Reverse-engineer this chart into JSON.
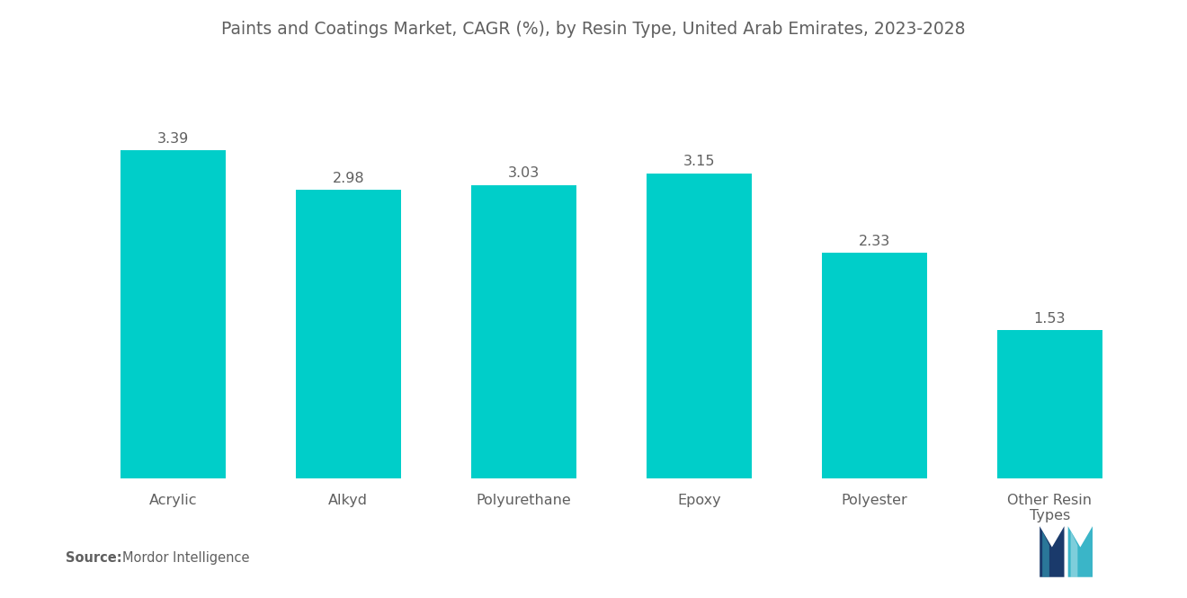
{
  "title": "Paints and Coatings Market, CAGR (%), by Resin Type, United Arab Emirates, 2023-2028",
  "categories": [
    "Acrylic",
    "Alkyd",
    "Polyurethane",
    "Epoxy",
    "Polyester",
    "Other Resin\nTypes"
  ],
  "values": [
    3.39,
    2.98,
    3.03,
    3.15,
    2.33,
    1.53
  ],
  "bar_color": "#00CEC9",
  "background_color": "#ffffff",
  "title_fontsize": 13.5,
  "value_fontsize": 11.5,
  "xtick_fontsize": 11.5,
  "ylim": [
    0,
    4.2
  ],
  "title_color": "#606060",
  "label_color": "#606060",
  "source_bold": "Source:",
  "source_normal": "  Mordor Intelligence",
  "logo_left_color": "#1a3a6b",
  "logo_right_color": "#3ab5c8"
}
